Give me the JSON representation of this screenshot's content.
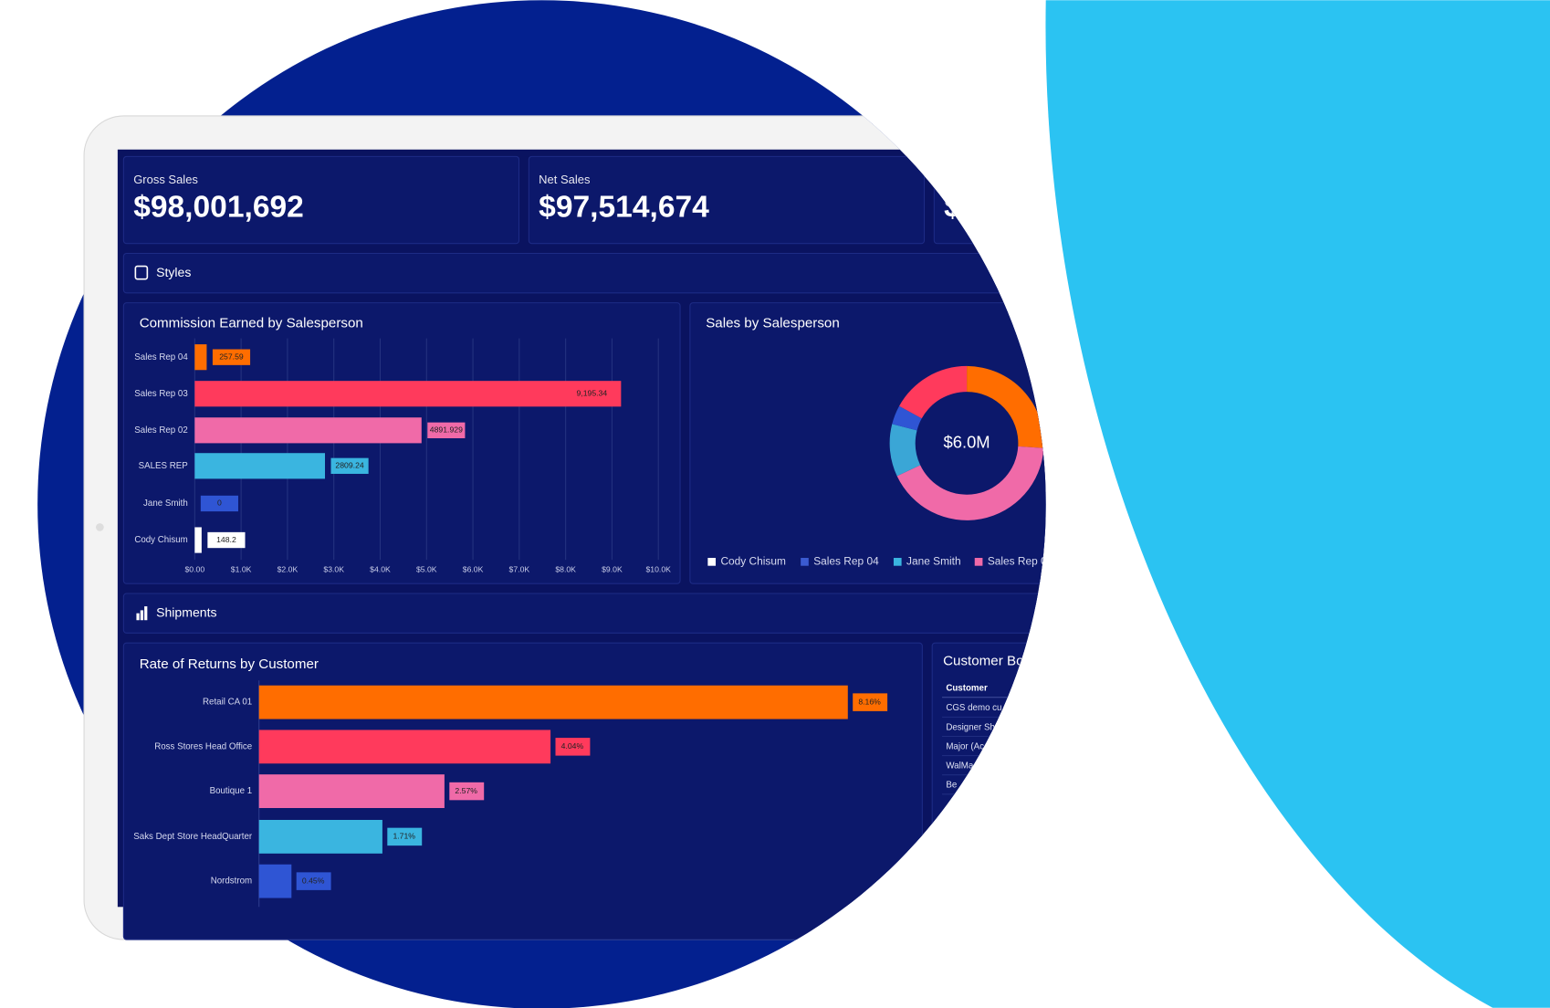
{
  "kpis": [
    {
      "label": "Gross Sales",
      "value": "$98,001,692"
    },
    {
      "label": "Net Sales",
      "value": "$97,514,674"
    },
    {
      "value": "$"
    }
  ],
  "sections": [
    "Styles",
    "Shipments"
  ],
  "chart_data": [
    {
      "type": "bar",
      "title": "Commission Earned by Salesperson",
      "categories": [
        "Sales Rep 04",
        "Sales Rep 03",
        "Sales Rep 02",
        "SALES REP",
        "Jane Smith",
        "Cody Chisum"
      ],
      "values": [
        257.59,
        9195.34,
        4891.929,
        2809.24,
        0,
        148.2
      ],
      "value_labels": [
        "257.59",
        "9,195.34",
        "4891.929",
        "2809.24",
        "0",
        "148.2"
      ],
      "colors": [
        "#ff6d00",
        "#ff3a5c",
        "#f06aa8",
        "#3ab5e0",
        "#2f55d4",
        "#ffffff"
      ],
      "xlim": [
        0,
        10000
      ],
      "xticks": [
        {
          "value": 0,
          "label": "$0.00"
        },
        {
          "value": 1000,
          "label": "$1.0K"
        },
        {
          "value": 2000,
          "label": "$2.0K"
        },
        {
          "value": 3000,
          "label": "$3.0K"
        },
        {
          "value": 4000,
          "label": "$4.0K"
        },
        {
          "value": 5000,
          "label": "$5.0K"
        },
        {
          "value": 6000,
          "label": "$6.0K"
        },
        {
          "value": 7000,
          "label": "$7.0K"
        },
        {
          "value": 8000,
          "label": "$8.0K"
        },
        {
          "value": 9000,
          "label": "$9.0K"
        },
        {
          "value": 10000,
          "label": "$10.0K"
        }
      ],
      "grid": true
    },
    {
      "type": "pie",
      "title": "Sales by Salesperson",
      "center_label": "$6.0M",
      "values": [
        26,
        42,
        11,
        4,
        17
      ],
      "colors": [
        "#ff6d00",
        "#f06aa8",
        "#3aa6d6",
        "#2f55d4",
        "#ff3a5c"
      ],
      "legend": [
        {
          "name": "Cody Chisum",
          "color": "#ffffff"
        },
        {
          "name": "Sales Rep 04",
          "color": "#3b5bd1"
        },
        {
          "name": "Jane Smith",
          "color": "#3ab5e0"
        },
        {
          "name": "Sales Rep 0",
          "color": "#f06aa8"
        }
      ]
    },
    {
      "type": "bar",
      "title": "Rate of Returns by Customer",
      "categories": [
        "Retail CA 01",
        "Ross Stores Head Office",
        "Boutique 1",
        "Saks Dept Store HeadQuarter",
        "Nordstrom"
      ],
      "values": [
        8.16,
        4.04,
        2.57,
        1.71,
        0.45
      ],
      "value_labels": [
        "8.16%",
        "4.04%",
        "2.57%",
        "1.71%",
        "0.45%"
      ],
      "colors": [
        "#ff6d00",
        "#ff3a5c",
        "#f06aa8",
        "#3ab5e0",
        "#2f55d4"
      ],
      "xlim": [
        0,
        9
      ]
    }
  ],
  "table": {
    "title": "Customer Bo",
    "header": [
      "Customer"
    ],
    "rows": [
      [
        "CGS demo cu"
      ],
      [
        "Designer Sh"
      ],
      [
        "Major (Ac"
      ],
      [
        "WalMa"
      ],
      [
        "Be"
      ]
    ]
  }
}
